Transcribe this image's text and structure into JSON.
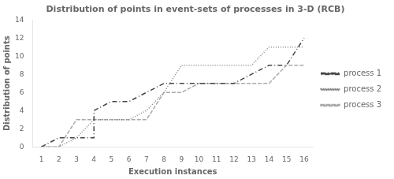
{
  "chart_data": {
    "type": "line",
    "title": "Distribution of points in event-sets of processes in 3-D (RCB)",
    "xlabel": "Execution instances",
    "ylabel": "Distribution of points",
    "xlim": [
      0.5,
      16.5
    ],
    "xticks": [
      1,
      2,
      3,
      4,
      5,
      6,
      7,
      8,
      9,
      10,
      11,
      12,
      13,
      14,
      15,
      16
    ],
    "ylim": [
      0,
      14
    ],
    "yticks": [
      0,
      2,
      4,
      6,
      8,
      10,
      12,
      14
    ],
    "grid": false,
    "legend": "right",
    "series": [
      {
        "name": "process 1",
        "color": "#444444",
        "line_style": "dashdot",
        "x": [
          1,
          2,
          3,
          4,
          4,
          5,
          6,
          7,
          8,
          9,
          10,
          11,
          12,
          13,
          14,
          15,
          16
        ],
        "values": [
          0,
          1,
          1,
          1,
          4,
          5,
          5,
          6,
          7,
          7,
          7,
          7,
          7,
          8,
          9,
          9,
          12
        ]
      },
      {
        "name": "process 2",
        "color": "#888888",
        "line_style": "dotted",
        "x": [
          1,
          2,
          3,
          4,
          5,
          6,
          7,
          8,
          9,
          10,
          11,
          12,
          13,
          14,
          15,
          16
        ],
        "values": [
          0,
          0,
          1,
          3,
          3,
          3,
          4,
          6,
          9,
          9,
          9,
          9,
          9,
          11,
          11,
          11
        ]
      },
      {
        "name": "process 3",
        "color": "#aaaaaa",
        "line_style": "dashed",
        "x": [
          1,
          2,
          3,
          4,
          5,
          6,
          7,
          8,
          9,
          10,
          11,
          12,
          13,
          14,
          15,
          16
        ],
        "values": [
          0,
          0,
          3,
          3,
          3,
          3,
          3,
          6,
          6,
          7,
          7,
          7,
          7,
          7,
          9,
          9
        ]
      }
    ]
  }
}
